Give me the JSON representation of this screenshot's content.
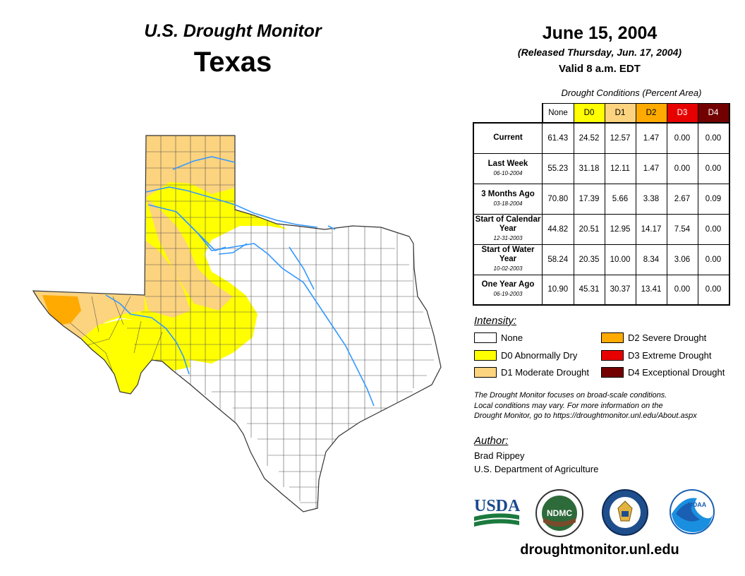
{
  "header": {
    "monitor_title": "U.S. Drought Monitor",
    "state": "Texas",
    "date": "June 15, 2004",
    "released": "(Released Thursday, Jun. 17, 2004)",
    "valid": "Valid 8 a.m. EDT"
  },
  "table": {
    "caption": "Drought Conditions (Percent Area)",
    "columns": [
      "None",
      "D0",
      "D1",
      "D2",
      "D3",
      "D4"
    ],
    "rows": [
      {
        "label": "Current",
        "date": "",
        "values": [
          "61.43",
          "24.52",
          "12.57",
          "1.47",
          "0.00",
          "0.00"
        ]
      },
      {
        "label": "Last Week",
        "date": "06-10-2004",
        "values": [
          "55.23",
          "31.18",
          "12.11",
          "1.47",
          "0.00",
          "0.00"
        ]
      },
      {
        "label": "3 Months Ago",
        "date": "03-18-2004",
        "values": [
          "70.80",
          "17.39",
          "5.66",
          "3.38",
          "2.67",
          "0.09"
        ]
      },
      {
        "label": "Start of Calendar Year",
        "date": "12-31-2003",
        "values": [
          "44.82",
          "20.51",
          "12.95",
          "14.17",
          "7.54",
          "0.00"
        ]
      },
      {
        "label": "Start of Water Year",
        "date": "10-02-2003",
        "values": [
          "58.24",
          "20.35",
          "10.00",
          "8.34",
          "3.06",
          "0.00"
        ]
      },
      {
        "label": "One Year Ago",
        "date": "06-19-2003",
        "values": [
          "10.90",
          "45.31",
          "30.37",
          "13.41",
          "0.00",
          "0.00"
        ]
      }
    ]
  },
  "legend": {
    "heading": "Intensity:",
    "items": [
      {
        "label": "None",
        "color": "#ffffff"
      },
      {
        "label": "D0 Abnormally Dry",
        "color": "#ffff00"
      },
      {
        "label": "D1 Moderate Drought",
        "color": "#fcd37f"
      },
      {
        "label": "D2 Severe Drought",
        "color": "#ffaa00"
      },
      {
        "label": "D3 Extreme Drought",
        "color": "#e60000"
      },
      {
        "label": "D4 Exceptional Drought",
        "color": "#730000"
      }
    ]
  },
  "disclaimer": {
    "line1": "The Drought Monitor focuses on broad-scale conditions.",
    "line2": "Local conditions may vary. For more information on the",
    "line3": "Drought Monitor, go to https://droughtmonitor.unl.edu/About.aspx"
  },
  "author": {
    "heading": "Author:",
    "name": "Brad Rippey",
    "org": "U.S. Department of Agriculture"
  },
  "logos": {
    "usda": "USDA",
    "ndmc": "NDMC",
    "noaa": "NOAA"
  },
  "website": "droughtmonitor.unl.edu",
  "colors": {
    "river": "#3399ff",
    "d0": "#ffff00",
    "d1": "#fcd37f",
    "d2": "#ffaa00",
    "d3": "#e60000",
    "d4": "#730000"
  }
}
